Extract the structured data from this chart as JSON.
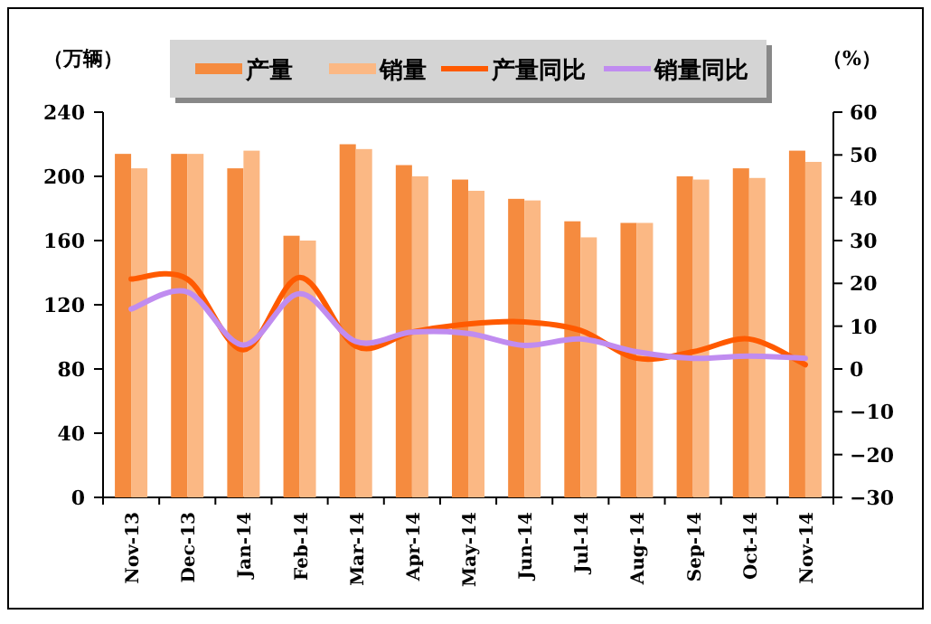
{
  "chart_data": {
    "type": "bar",
    "ylabel": "（万辆）",
    "y2label": "（%）",
    "categories": [
      "Nov-13",
      "Dec-13",
      "Jan-14",
      "Feb-14",
      "Mar-14",
      "Apr-14",
      "May-14",
      "Jun-14",
      "Jul-14",
      "Aug-14",
      "Sep-14",
      "Oct-14",
      "Nov-14"
    ],
    "series": [
      {
        "name": "产量",
        "color": "#f58b3f",
        "values": [
          214,
          214,
          205,
          163,
          220,
          207,
          198,
          186,
          172,
          171,
          200,
          205,
          216
        ]
      },
      {
        "name": "销量",
        "color": "#fbb884",
        "values": [
          205,
          214,
          216,
          160,
          217,
          200,
          191,
          185,
          162,
          171,
          198,
          199,
          209
        ]
      },
      {
        "name": "产量同比",
        "type": "line",
        "axis": "y2",
        "color": "#ff5a00",
        "values": [
          21,
          21,
          4.5,
          21.4,
          5.3,
          8.6,
          10.5,
          11,
          9,
          2.5,
          4,
          7,
          1
        ]
      },
      {
        "name": "销量同比",
        "type": "line",
        "axis": "y2",
        "color": "#c08cf0",
        "values": [
          14,
          18,
          5.6,
          17.6,
          6.4,
          8.6,
          8.3,
          5.5,
          7,
          4,
          2.5,
          3,
          2.5
        ]
      }
    ],
    "ylim": [
      0,
      240
    ],
    "yticks": [
      0,
      40,
      80,
      120,
      160,
      200,
      240
    ],
    "y2lim": [
      -30,
      60
    ],
    "y2ticks": [
      -30,
      -20,
      -10,
      0,
      10,
      20,
      30,
      40,
      50,
      60
    ],
    "legend": "top",
    "grid": false
  }
}
